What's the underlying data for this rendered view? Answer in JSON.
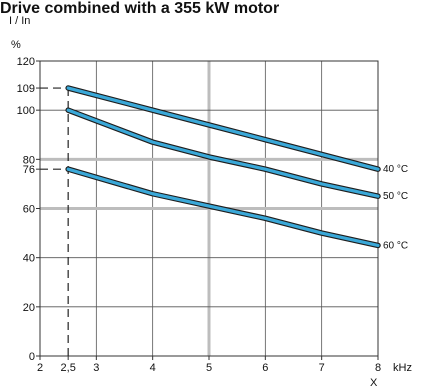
{
  "chart_data": {
    "type": "line",
    "title": "Drive combined with a 355 kW motor",
    "ylabel": "I / In",
    "yunit": "%",
    "xlabel": "X",
    "xunit": "kHz",
    "xlim": [
      2,
      8
    ],
    "ylim": [
      0,
      120
    ],
    "x_ticks": [
      2,
      2.5,
      3,
      4,
      5,
      6,
      7,
      8
    ],
    "x_tick_labels": [
      "2",
      "2,5",
      "3",
      "4",
      "5",
      "6",
      "7",
      "8"
    ],
    "y_ticks": [
      0,
      20,
      40,
      60,
      76,
      80,
      100,
      109,
      120
    ],
    "y_tick_labels": [
      "0",
      "20",
      "40",
      "60",
      "76",
      "80",
      "100",
      "109",
      "120"
    ],
    "grid": true,
    "highlighted_x": [
      5
    ],
    "highlighted_y": [
      60,
      80
    ],
    "reference_line": {
      "x": 2.5,
      "y_values": [
        109,
        76
      ]
    },
    "line_color": "#3aa8d8",
    "series": [
      {
        "name": "40 °C",
        "x": [
          2.5,
          4,
          5,
          6,
          7,
          8
        ],
        "values": [
          109,
          100,
          94,
          88,
          82,
          76
        ]
      },
      {
        "name": "50 °C",
        "x": [
          2.5,
          4,
          5,
          6,
          7,
          8
        ],
        "values": [
          100,
          87,
          81,
          76,
          70,
          65
        ]
      },
      {
        "name": "60 °C",
        "x": [
          2.5,
          4,
          5,
          6,
          7,
          8
        ],
        "values": [
          76,
          66,
          61,
          56,
          50,
          45
        ]
      }
    ]
  }
}
